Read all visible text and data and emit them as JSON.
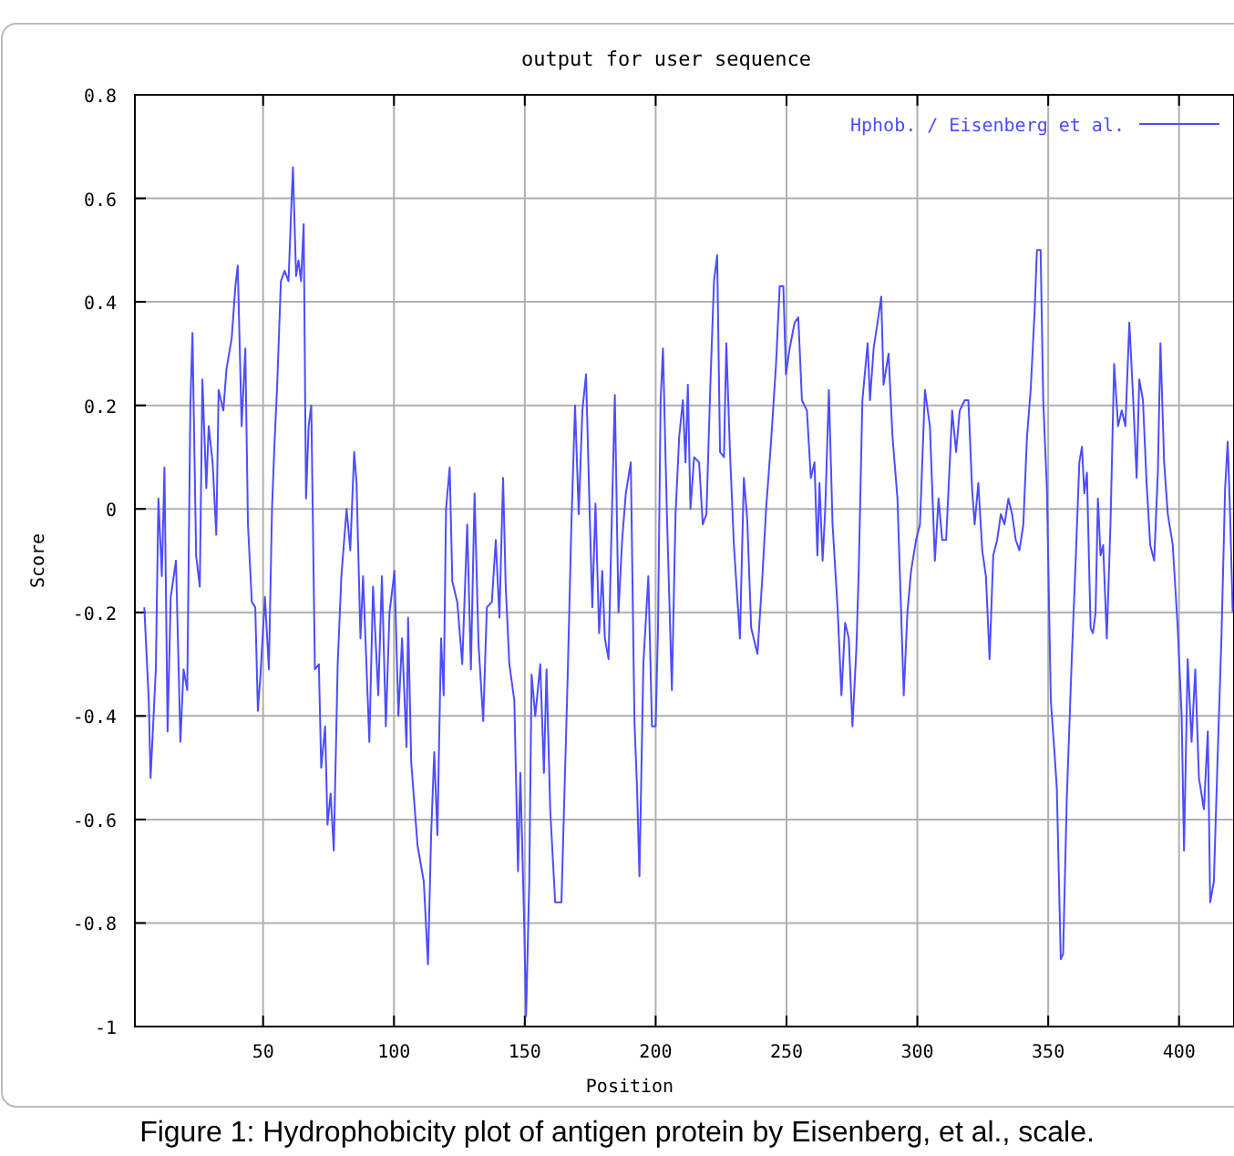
{
  "chart_data": {
    "type": "line",
    "title": "output for user sequence",
    "xlabel": "Position",
    "ylabel": "Score",
    "annotations": [
      "Figure 1: Hydrophobicity plot of antigen protein by Eisenberg, et al., scale."
    ],
    "xlim": [
      1,
      421
    ],
    "xticks": [
      50,
      100,
      150,
      200,
      250,
      300,
      350,
      400
    ],
    "ylim": [
      -1,
      0.8
    ],
    "yticks": [
      -1,
      {
        "value": -0.8,
        "label": "-0.8"
      },
      {
        "value": -0.6,
        "label": "-0.6"
      },
      {
        "value": -0.4,
        "label": "-0.4"
      },
      {
        "value": -0.2,
        "label": "-0.2"
      },
      0,
      0.2,
      0.4,
      0.6,
      0.8
    ],
    "grid": true,
    "legend": "top right",
    "marker": "none",
    "line_style": "solid",
    "series": [
      {
        "name": "Hphob. / Eisenberg et al.",
        "color": "#4d4dff",
        "x": [
          4.6,
          6.3,
          7,
          9,
          10,
          11.3,
          12.3,
          13.5,
          14.7,
          16.7,
          18.4,
          19.6,
          21,
          22.2,
          23,
          24.4,
          25.8,
          26.8,
          28.3,
          29.2,
          30.7,
          32.1,
          33,
          34.8,
          36,
          38,
          39.4,
          40.3,
          41.8,
          43.2,
          44.2,
          45.7,
          47,
          48,
          49,
          50.7,
          52.2,
          53.4,
          54.3,
          55.3,
          56.8,
          58.2,
          59.7,
          60.9,
          61.4,
          62.6,
          63.5,
          64.5,
          65.5,
          66.4,
          67.4,
          68.4,
          69.8,
          71.3,
          72.2,
          73.7,
          74.6,
          75.8,
          77,
          78.5,
          79.9,
          81.9,
          83.3,
          84.8,
          85.7,
          87.2,
          88.2,
          90.6,
          92,
          94,
          95.4,
          96.9,
          98.3,
          100.2,
          101.7,
          103.1,
          104.8,
          105.4,
          106.6,
          109,
          111.4,
          113,
          114.2,
          115.4,
          116.6,
          118,
          119,
          119.9,
          121.3,
          122.3,
          124.2,
          126.1,
          128,
          129.4,
          130.8,
          132.3,
          134.1,
          135.5,
          137.4,
          138.9,
          140.3,
          141.7,
          142.7,
          144.1,
          146,
          147.4,
          148.3,
          149.8,
          150.5,
          151.7,
          152.6,
          154,
          155.9,
          157.3,
          158.3,
          159.7,
          161.6,
          164,
          166.4,
          167.8,
          169.2,
          170.6,
          172,
          173.4,
          174.9,
          175.8,
          177,
          178.4,
          179.6,
          180.6,
          182,
          183,
          184.4,
          185.8,
          187.2,
          188.6,
          190.5,
          191.9,
          192.9,
          193.8,
          195.3,
          197.2,
          198.6,
          200,
          200.9,
          201.9,
          202.8,
          204.3,
          206.2,
          207.6,
          209,
          210.4,
          211.4,
          212.3,
          213.3,
          214.7,
          216.6,
          218,
          219.4,
          220.9,
          222.3,
          223.5,
          224.6,
          226.1,
          227,
          228.4,
          229.9,
          232.2,
          233.7,
          235,
          236.5,
          238.9,
          240.8,
          242.2,
          244.1,
          246,
          247.4,
          248.8,
          249.8,
          251.2,
          253.1,
          254.5,
          255.9,
          257.8,
          259.3,
          260.7,
          261.8,
          262.6,
          263.8,
          264.8,
          266.2,
          267.6,
          269.5,
          271,
          272.4,
          273.8,
          275.2,
          276.7,
          277.6,
          279,
          281,
          281.9,
          283.3,
          284.8,
          286.2,
          287.1,
          289,
          290.5,
          292.4,
          293.8,
          294.8,
          296.2,
          297.6,
          299.5,
          301,
          302.9,
          304.8,
          306.7,
          308.1,
          309.5,
          311,
          312.4,
          313.3,
          314.8,
          316.2,
          318.1,
          319.5,
          320.9,
          321.9,
          323.3,
          324.8,
          326.2,
          327.6,
          329,
          330.5,
          331.9,
          333.3,
          334.8,
          336.2,
          337.6,
          339,
          340.5,
          341.9,
          343.3,
          344.8,
          345.7,
          347.1,
          348.1,
          349.5,
          351,
          352.4,
          353.3,
          354.8,
          355.7,
          357.1,
          359,
          360.5,
          361.9,
          362.9,
          363.8,
          364.8,
          366.2,
          367.1,
          368.1,
          369,
          370,
          371,
          372.4,
          373.8,
          375.2,
          376.7,
          378.1,
          379.5,
          381,
          382.4,
          383.8,
          384.8,
          386.2,
          387.6,
          389,
          390.5,
          391.9,
          392.9,
          394.3,
          395.7,
          397.6,
          399.5,
          401,
          401.9,
          403.3,
          404.8,
          406.2,
          407.6,
          409.5,
          411,
          411.9,
          413.3,
          414.8,
          416.2,
          417.6,
          418.6,
          419.5,
          420.5
        ],
        "values": [
          -0.19,
          -0.37,
          -0.52,
          -0.31,
          0.02,
          -0.13,
          0.08,
          -0.43,
          -0.17,
          -0.1,
          -0.45,
          -0.31,
          -0.35,
          0.2,
          0.34,
          -0.09,
          -0.15,
          0.25,
          0.04,
          0.16,
          0.09,
          -0.05,
          0.23,
          0.19,
          0.27,
          0.33,
          0.43,
          0.47,
          0.16,
          0.31,
          -0.03,
          -0.18,
          -0.19,
          -0.39,
          -0.32,
          -0.17,
          -0.31,
          0,
          0.12,
          0.23,
          0.44,
          0.46,
          0.44,
          0.6,
          0.66,
          0.45,
          0.48,
          0.44,
          0.55,
          0.02,
          0.16,
          0.2,
          -0.31,
          -0.3,
          -0.5,
          -0.42,
          -0.61,
          -0.55,
          -0.66,
          -0.3,
          -0.13,
          0,
          -0.08,
          0.11,
          0.05,
          -0.25,
          -0.13,
          -0.45,
          -0.15,
          -0.36,
          -0.13,
          -0.42,
          -0.2,
          -0.12,
          -0.4,
          -0.25,
          -0.46,
          -0.21,
          -0.49,
          -0.65,
          -0.72,
          -0.88,
          -0.63,
          -0.47,
          -0.63,
          -0.25,
          -0.36,
          0,
          0.08,
          -0.14,
          -0.18,
          -0.3,
          -0.03,
          -0.31,
          0.03,
          -0.26,
          -0.41,
          -0.19,
          -0.18,
          -0.06,
          -0.21,
          0.06,
          -0.15,
          -0.3,
          -0.37,
          -0.7,
          -0.51,
          -0.81,
          -0.98,
          -0.72,
          -0.32,
          -0.4,
          -0.3,
          -0.51,
          -0.31,
          -0.58,
          -0.76,
          -0.76,
          -0.32,
          -0.03,
          0.2,
          -0.01,
          0.19,
          0.26,
          -0.03,
          -0.19,
          0.01,
          -0.24,
          -0.12,
          -0.25,
          -0.29,
          -0.07,
          0.22,
          -0.2,
          -0.06,
          0.03,
          0.09,
          -0.41,
          -0.54,
          -0.71,
          -0.3,
          -0.13,
          -0.42,
          -0.42,
          -0.23,
          0.21,
          0.31,
          -0.01,
          -0.35,
          -0.01,
          0.14,
          0.21,
          0.09,
          0.24,
          0,
          0.1,
          0.09,
          -0.03,
          -0.01,
          0.24,
          0.44,
          0.49,
          0.11,
          0.1,
          0.32,
          0.11,
          -0.07,
          -0.25,
          0.06,
          -0.02,
          -0.23,
          -0.28,
          -0.13,
          0,
          0.13,
          0.28,
          0.43,
          0.43,
          0.26,
          0.31,
          0.36,
          0.37,
          0.21,
          0.19,
          0.06,
          0.09,
          -0.09,
          0.05,
          -0.1,
          0,
          0.23,
          -0.03,
          -0.19,
          -0.36,
          -0.22,
          -0.25,
          -0.42,
          -0.27,
          -0.12,
          0.21,
          0.32,
          0.21,
          0.31,
          0.36,
          0.41,
          0.24,
          0.3,
          0.14,
          0.02,
          -0.2,
          -0.36,
          -0.2,
          -0.12,
          -0.06,
          -0.03,
          0.23,
          0.16,
          -0.1,
          0.02,
          -0.06,
          -0.06,
          0.09,
          0.19,
          0.11,
          0.19,
          0.21,
          0.21,
          0.04,
          -0.03,
          0.05,
          -0.08,
          -0.13,
          -0.29,
          -0.09,
          -0.06,
          -0.01,
          -0.03,
          0.02,
          -0.01,
          -0.06,
          -0.08,
          -0.03,
          0.14,
          0.23,
          0.38,
          0.5,
          0.5,
          0.21,
          0.04,
          -0.37,
          -0.47,
          -0.54,
          -0.87,
          -0.86,
          -0.56,
          -0.29,
          -0.1,
          0.09,
          0.12,
          0.03,
          0.07,
          -0.23,
          -0.24,
          -0.2,
          0.02,
          -0.09,
          -0.07,
          -0.25,
          -0.03,
          0.28,
          0.16,
          0.19,
          0.16,
          0.36,
          0.22,
          0.06,
          0.25,
          0.21,
          0.05,
          -0.07,
          -0.1,
          0.07,
          0.32,
          0.09,
          -0.01,
          -0.07,
          -0.23,
          -0.4,
          -0.66,
          -0.29,
          -0.45,
          -0.31,
          -0.52,
          -0.58,
          -0.43,
          -0.76,
          -0.72,
          -0.47,
          -0.25,
          0.04,
          0.13,
          -0.01,
          -0.2
        ]
      }
    ]
  }
}
